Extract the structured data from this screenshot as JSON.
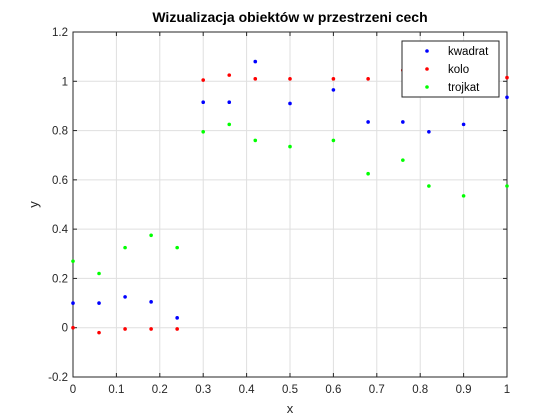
{
  "chart_data": {
    "type": "scatter",
    "title": "Wizualizacja obiektów w przestrzeni cech",
    "xlabel": "x",
    "ylabel": "y",
    "xlim": [
      0,
      1
    ],
    "ylim": [
      -0.2,
      1.2
    ],
    "xticks": [
      0,
      0.1,
      0.2,
      0.3,
      0.4,
      0.5,
      0.6,
      0.7,
      0.8,
      0.9,
      1
    ],
    "xtick_labels": [
      "0",
      "0.1",
      "0.2",
      "0.3",
      "0.4",
      "0.5",
      "0.6",
      "0.7",
      "0.8",
      "0.9",
      "1"
    ],
    "yticks": [
      -0.2,
      0,
      0.2,
      0.4,
      0.6,
      0.8,
      1,
      1.2
    ],
    "ytick_labels": [
      "-0.2",
      "0",
      "0.2",
      "0.4",
      "0.6",
      "0.8",
      "1",
      "1.2"
    ],
    "grid": true,
    "legend_position": "top-right",
    "series": [
      {
        "name": "kwadrat",
        "color": "#0000ff",
        "points": [
          [
            0,
            0.1
          ],
          [
            0.06,
            0.1
          ],
          [
            0.12,
            0.125
          ],
          [
            0.18,
            0.105
          ],
          [
            0.24,
            0.04
          ],
          [
            0.3,
            0.915
          ],
          [
            0.36,
            0.915
          ],
          [
            0.42,
            1.08
          ],
          [
            0.5,
            0.91
          ],
          [
            0.6,
            0.965
          ],
          [
            0.68,
            0.835
          ],
          [
            0.76,
            0.835
          ],
          [
            0.82,
            0.795
          ],
          [
            0.9,
            0.825
          ],
          [
            1,
            0.935
          ]
        ]
      },
      {
        "name": "kolo",
        "color": "#ff0000",
        "points": [
          [
            0,
            0
          ],
          [
            0.06,
            -0.02
          ],
          [
            0.12,
            -0.005
          ],
          [
            0.18,
            -0.005
          ],
          [
            0.24,
            -0.005
          ],
          [
            0.3,
            1.005
          ],
          [
            0.36,
            1.025
          ],
          [
            0.42,
            1.01
          ],
          [
            0.5,
            1.01
          ],
          [
            0.6,
            1.01
          ],
          [
            0.68,
            1.01
          ],
          [
            0.76,
            1.045
          ],
          [
            0.9,
            1.015
          ],
          [
            1,
            1.015
          ]
        ]
      },
      {
        "name": "trojkat",
        "color": "#00ff00",
        "points": [
          [
            0,
            0.27
          ],
          [
            0.06,
            0.22
          ],
          [
            0.12,
            0.325
          ],
          [
            0.18,
            0.375
          ],
          [
            0.24,
            0.325
          ],
          [
            0.3,
            0.795
          ],
          [
            0.36,
            0.825
          ],
          [
            0.42,
            0.76
          ],
          [
            0.5,
            0.735
          ],
          [
            0.6,
            0.76
          ],
          [
            0.68,
            0.625
          ],
          [
            0.76,
            0.68
          ],
          [
            0.82,
            0.575
          ],
          [
            0.9,
            0.535
          ],
          [
            1,
            0.575
          ]
        ]
      }
    ]
  }
}
